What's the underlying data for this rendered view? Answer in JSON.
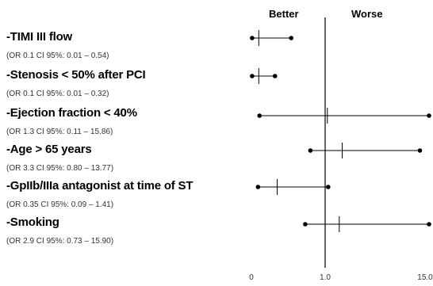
{
  "chart_data": {
    "type": "forest",
    "title": "",
    "xlabel": "",
    "ylabel": "",
    "x_axis": {
      "ticks": [
        {
          "value": 0,
          "label": "0"
        },
        {
          "value": 1,
          "label": "1.0"
        },
        {
          "value": 15,
          "label": "15.0"
        }
      ],
      "reference_line": 1,
      "direction_labels": {
        "left": "Better",
        "right": "Worse"
      }
    },
    "rows": [
      {
        "label": "-TIMI III flow",
        "sub": "(OR 0.1 CI 95%: 0.01 – 0.54)",
        "or": 0.1,
        "lo": 0.01,
        "hi": 0.54
      },
      {
        "label": "-Stenosis < 50% after PCI",
        "sub": "(OR 0.1 CI 95%: 0.01 – 0.32)",
        "or": 0.1,
        "lo": 0.01,
        "hi": 0.32
      },
      {
        "label": "-Ejection fraction < 40%",
        "sub": "(OR 1.3 CI 95%: 0.11 – 15.86)",
        "or": 1.3,
        "lo": 0.11,
        "hi": 15.86
      },
      {
        "label": "-Age > 65 years",
        "sub": "(OR 3.3 CI 95%: 0.80 – 13.77)",
        "or": 3.3,
        "lo": 0.8,
        "hi": 13.77
      },
      {
        "label": "-GpIIb/IIIa antagonist at time of ST",
        "sub": "(OR 0.35 CI 95%: 0.09 – 1.41)",
        "or": 0.35,
        "lo": 0.09,
        "hi": 1.41
      },
      {
        "label": "-Smoking",
        "sub": "(OR 2.9 CI 95%: 0.73 – 15.90)",
        "or": 2.9,
        "lo": 0.73,
        "hi": 15.9
      }
    ]
  }
}
